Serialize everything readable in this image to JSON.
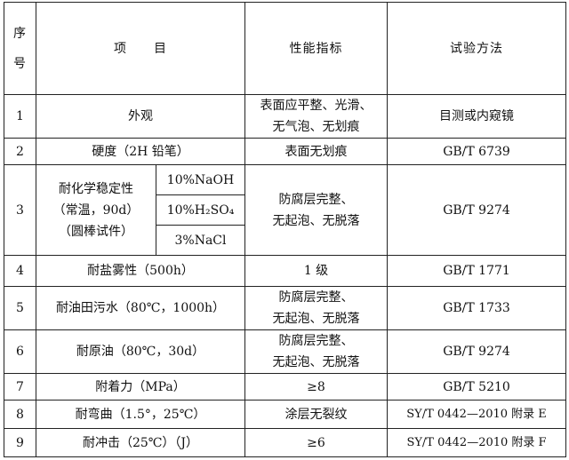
{
  "header": {
    "no": [
      "序",
      "号"
    ],
    "item": "项　　目",
    "spec": "性能指标",
    "method": "试验方法"
  },
  "rows": [
    {
      "no": "1",
      "item": "外观",
      "spec": [
        "表面应平整、光滑、",
        "无气泡、无划痕"
      ],
      "method": "目测或内窥镜"
    },
    {
      "no": "2",
      "item": "硬度（2H 铅笔）",
      "spec": [
        "表面无划痕"
      ],
      "method": "GB/T 6739"
    },
    {
      "no": "3",
      "item": [
        "耐化学稳定性",
        "（常温，90d）",
        "（圆棒试件）"
      ],
      "subitems": [
        "10%NaOH",
        "10%H₂SO₄",
        "3%NaCl"
      ],
      "spec": [
        "防腐层完整、",
        "无起泡、无脱落"
      ],
      "method": "GB/T 9274"
    },
    {
      "no": "4",
      "item": "耐盐雾性（500h）",
      "spec": [
        "1 级"
      ],
      "method": "GB/T 1771"
    },
    {
      "no": "5",
      "item": "耐油田污水（80℃，1000h）",
      "spec": [
        "防腐层完整、",
        "无起泡、无脱落"
      ],
      "method": "GB/T 1733"
    },
    {
      "no": "6",
      "item": "耐原油（80℃，30d）",
      "spec": [
        "防腐层完整、",
        "无起泡、无脱落"
      ],
      "method": "GB/T 9274"
    },
    {
      "no": "7",
      "item": "附着力（MPa）",
      "spec": [
        "≥8"
      ],
      "method": "GB/T 5210"
    },
    {
      "no": "8",
      "item": "耐弯曲（1.5°，25℃）",
      "spec": [
        "涂层无裂纹"
      ],
      "method": "SY/T 0442—2010 附录 E"
    },
    {
      "no": "9",
      "item": "耐冲击（25℃）（J）",
      "spec": [
        "≥6"
      ],
      "method": "SY/T 0442—2010 附录 F"
    }
  ]
}
